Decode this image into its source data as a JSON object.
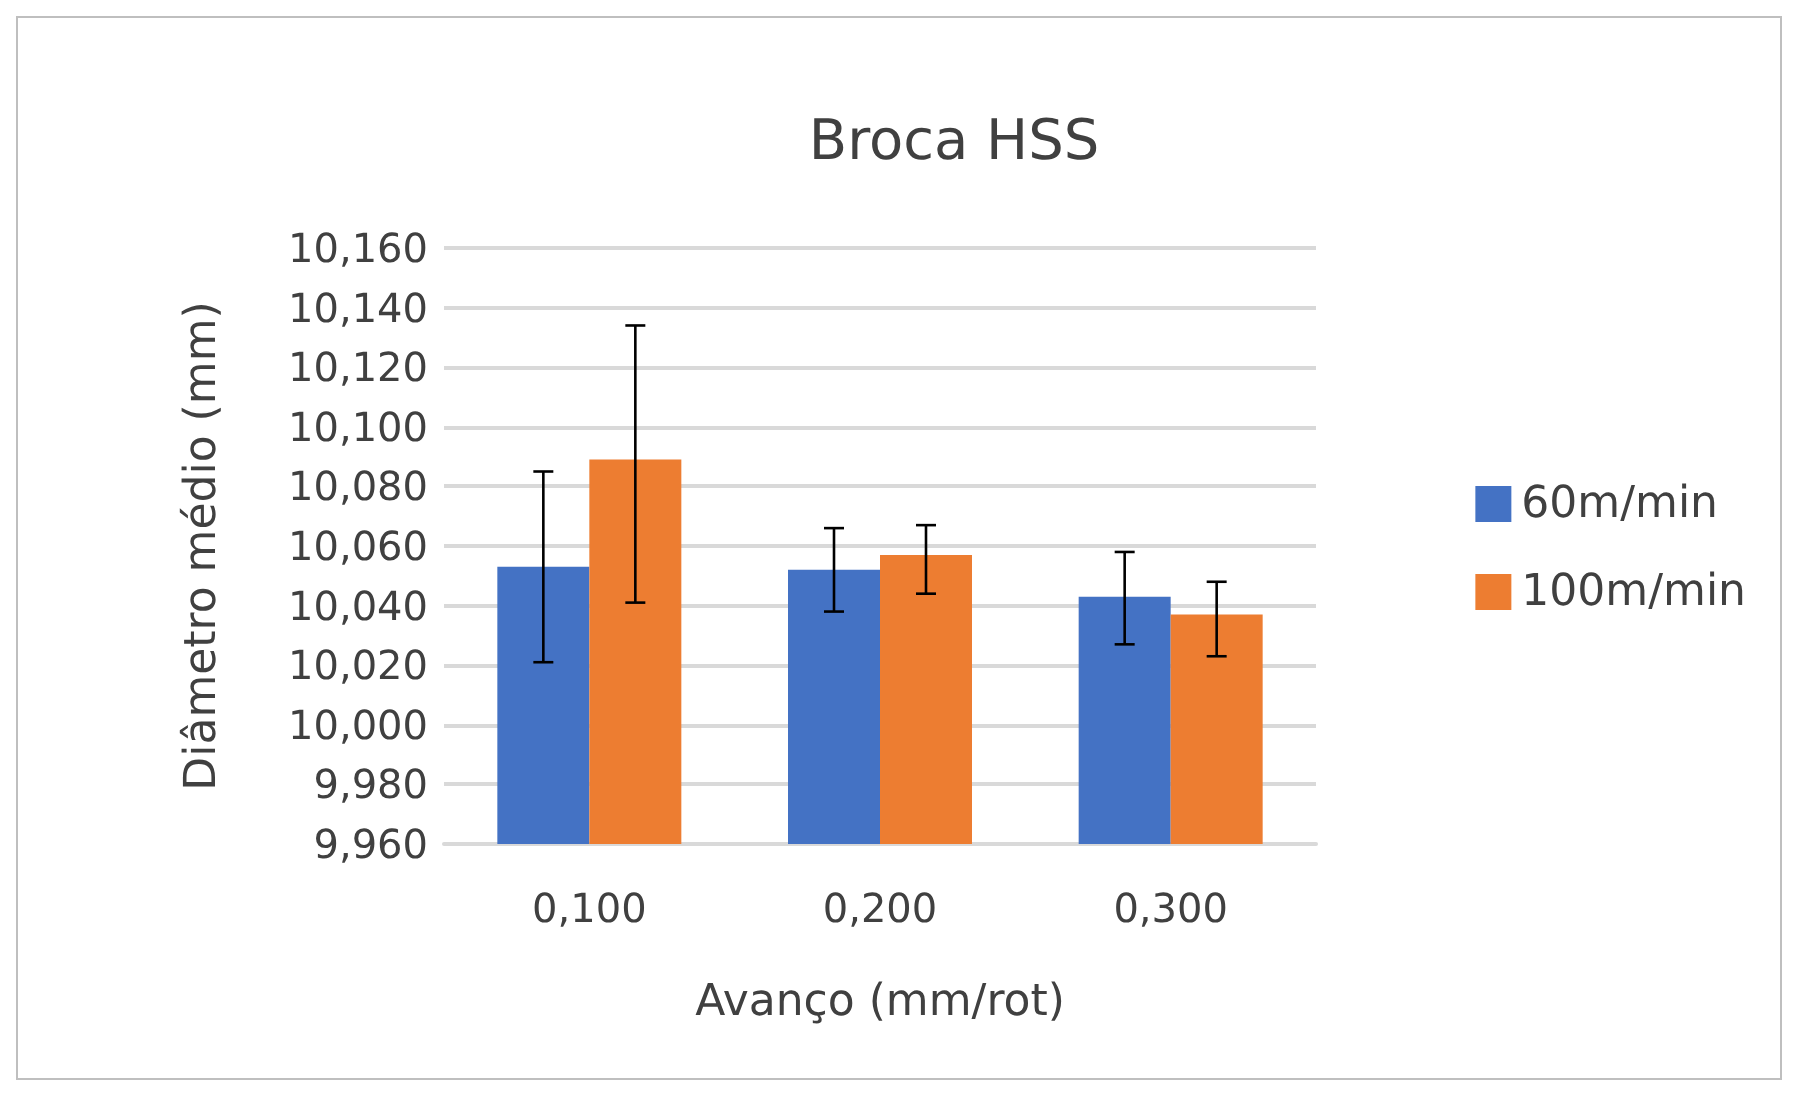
{
  "chart_data": {
    "type": "bar",
    "title": "Broca HSS",
    "xlabel": "Avanço (mm/rot)",
    "ylabel": "Diâmetro médio (mm)",
    "categories": [
      "0,100",
      "0,200",
      "0,300"
    ],
    "series": [
      {
        "name": "60m/min",
        "color": "#4472c4",
        "values": [
          10.053,
          10.052,
          10.043
        ],
        "errors": [
          [
            10.021,
            10.085
          ],
          [
            10.038,
            10.066
          ],
          [
            10.027,
            10.058
          ]
        ]
      },
      {
        "name": "100m/min",
        "color": "#ed7d31",
        "values": [
          10.089,
          10.057,
          10.037
        ],
        "errors": [
          [
            10.041,
            10.134
          ],
          [
            10.044,
            10.067
          ],
          [
            10.023,
            10.048
          ]
        ]
      }
    ],
    "ylim": [
      9.96,
      10.16
    ],
    "yticks": [
      {
        "value": 9.96,
        "label": "9,960"
      },
      {
        "value": 9.98,
        "label": "9,980"
      },
      {
        "value": 10.0,
        "label": "10,000"
      },
      {
        "value": 10.02,
        "label": "10,020"
      },
      {
        "value": 10.04,
        "label": "10,040"
      },
      {
        "value": 10.06,
        "label": "10,060"
      },
      {
        "value": 10.08,
        "label": "10,080"
      },
      {
        "value": 10.1,
        "label": "10,100"
      },
      {
        "value": 10.12,
        "label": "10,120"
      },
      {
        "value": 10.14,
        "label": "10,140"
      },
      {
        "value": 10.16,
        "label": "10,160"
      }
    ],
    "grid": "y",
    "legend": "right"
  }
}
